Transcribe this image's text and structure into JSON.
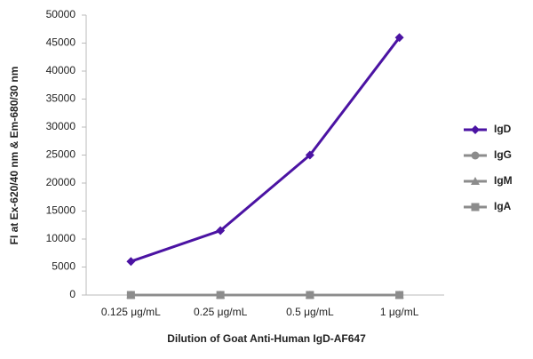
{
  "chart_data": {
    "type": "line",
    "x_label": "Dilution of Goat Anti-Human IgD-AF647",
    "y_label": "FI at Ex-620/40 nm & Em-680/30 nm",
    "categories": [
      "0.125 μg/mL",
      "0.25 μg/mL",
      "0.5 μg/mL",
      "1 μg/mL"
    ],
    "series": [
      {
        "name": "IgD",
        "color": "#4b13a3",
        "marker": "diamond",
        "values": [
          6000,
          11500,
          25000,
          46000
        ]
      },
      {
        "name": "IgG",
        "color": "#8c8c8c",
        "marker": "circle",
        "values": [
          0,
          0,
          0,
          0
        ]
      },
      {
        "name": "IgM",
        "color": "#8c8c8c",
        "marker": "triangle",
        "values": [
          0,
          0,
          0,
          0
        ]
      },
      {
        "name": "IgA",
        "color": "#8c8c8c",
        "marker": "square",
        "values": [
          0,
          0,
          0,
          0
        ]
      }
    ],
    "ylim": [
      0,
      50000
    ],
    "yticks": [
      0,
      5000,
      10000,
      15000,
      20000,
      25000,
      30000,
      35000,
      40000,
      45000,
      50000
    ],
    "legend": "right"
  }
}
